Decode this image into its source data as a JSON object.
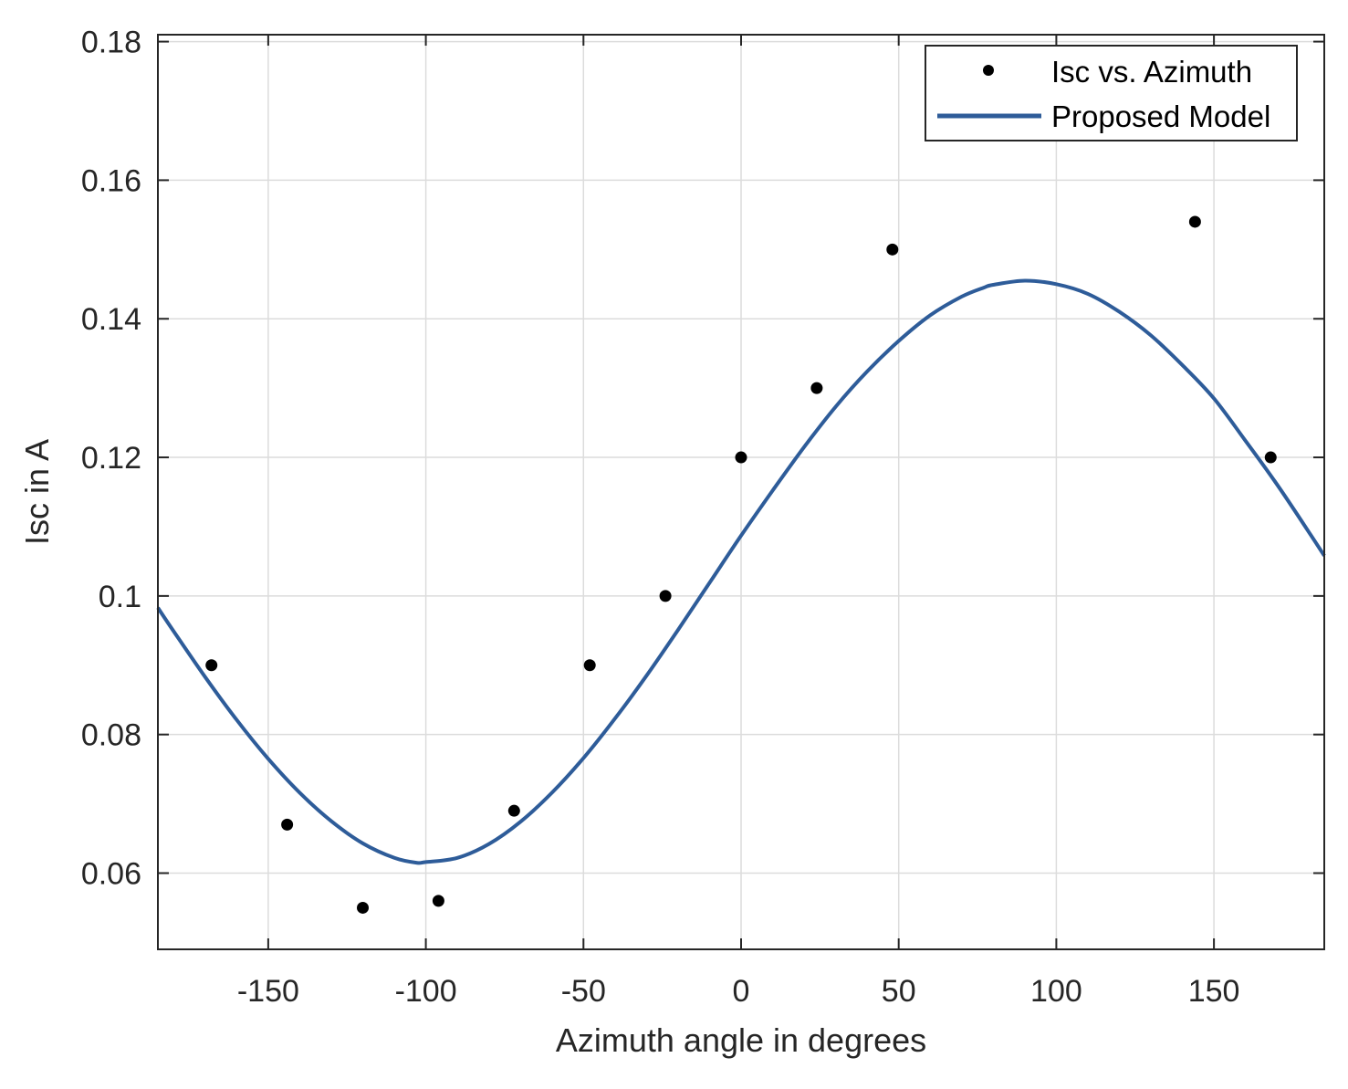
{
  "chart_data": {
    "type": "scatter",
    "title": "",
    "xlabel": "Azimuth angle in degrees",
    "ylabel": "Isc in A",
    "xlim": [
      -185,
      185
    ],
    "ylim": [
      0.049,
      0.181
    ],
    "grid": true,
    "legend_position": "top-right",
    "x_ticks": [
      {
        "value": -150,
        "label": "-150"
      },
      {
        "value": -100,
        "label": "-100"
      },
      {
        "value": -50,
        "label": "-50"
      },
      {
        "value": 0,
        "label": "0"
      },
      {
        "value": 50,
        "label": "50"
      },
      {
        "value": 100,
        "label": "100"
      },
      {
        "value": 150,
        "label": "150"
      }
    ],
    "y_ticks": [
      {
        "value": 0.06,
        "label": "0.06"
      },
      {
        "value": 0.08,
        "label": "0.08"
      },
      {
        "value": 0.1,
        "label": "0.1"
      },
      {
        "value": 0.12,
        "label": "0.12"
      },
      {
        "value": 0.14,
        "label": "0.14"
      },
      {
        "value": 0.16,
        "label": "0.16"
      },
      {
        "value": 0.18,
        "label": "0.18"
      }
    ],
    "series": [
      {
        "name": "Isc vs. Azimuth",
        "kind": "scatter",
        "color": "#000000",
        "x": [
          -168,
          -144,
          -120,
          -96,
          -72,
          -48,
          -24,
          0,
          24,
          48,
          144,
          168
        ],
        "y": [
          0.09,
          0.067,
          0.055,
          0.056,
          0.069,
          0.09,
          0.1,
          0.12,
          0.13,
          0.15,
          0.154,
          0.12
        ]
      },
      {
        "name": "Proposed Model",
        "kind": "line",
        "color": "#2e5c99",
        "x": [
          -185,
          -180,
          -170,
          -160,
          -150,
          -140,
          -130,
          -120,
          -110,
          -103,
          -100,
          -90,
          -80,
          -70,
          -60,
          -50,
          -40,
          -30,
          -20,
          -10,
          0,
          10,
          20,
          30,
          40,
          50,
          60,
          70,
          77,
          80,
          90,
          100,
          110,
          120,
          130,
          140,
          150,
          160,
          170,
          180,
          185
        ],
        "y": [
          0.0983,
          0.0949,
          0.0883,
          0.0821,
          0.0765,
          0.0716,
          0.0675,
          0.0643,
          0.0622,
          0.0615,
          0.0616,
          0.0622,
          0.0642,
          0.0674,
          0.0716,
          0.0766,
          0.0823,
          0.0885,
          0.0951,
          0.1019,
          0.1087,
          0.1152,
          0.1215,
          0.1273,
          0.1324,
          0.1368,
          0.1405,
          0.1432,
          0.1445,
          0.1449,
          0.1455,
          0.145,
          0.1436,
          0.141,
          0.1376,
          0.1333,
          0.1285,
          0.1224,
          0.1161,
          0.1093,
          0.1058
        ]
      }
    ]
  }
}
